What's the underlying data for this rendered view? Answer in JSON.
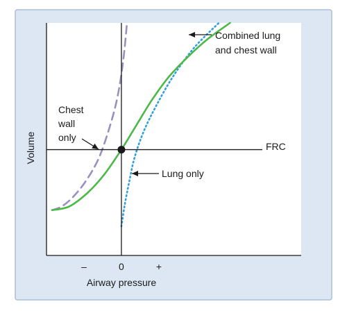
{
  "chart_data": {
    "type": "line",
    "title": "",
    "xlabel": "Airway pressure",
    "ylabel": "Volume",
    "x_ticks": [
      "–",
      "0",
      "+"
    ],
    "x_tick_values": [
      -1,
      0,
      1
    ],
    "xlim": [
      -2.0,
      4.8
    ],
    "ylim": [
      -4.55,
      5.45
    ],
    "reference_line": {
      "label": "FRC",
      "y": 0
    },
    "origin_marker": {
      "x": 0,
      "y": 0
    },
    "series": [
      {
        "name": "Chest wall only",
        "style": "dashed",
        "color": "#9b8fc0",
        "x": [
          -1.85,
          -1.6,
          -1.3,
          -0.95,
          -0.6,
          -0.3,
          -0.1,
          0.05,
          0.15
        ],
        "y": [
          -2.6,
          -2.45,
          -2.05,
          -1.35,
          -0.35,
          1.05,
          2.3,
          3.85,
          5.45
        ]
      },
      {
        "name": "Lung only",
        "style": "dotted",
        "color": "#2f9fe0",
        "x": [
          0.0,
          0.08,
          0.2,
          0.35,
          0.6,
          0.95,
          1.4,
          1.95,
          2.6
        ],
        "y": [
          -3.3,
          -2.45,
          -1.45,
          -0.35,
          0.8,
          1.95,
          3.2,
          4.4,
          5.45
        ]
      },
      {
        "name": "Combined lung and chest wall",
        "style": "solid",
        "color": "#4cb848",
        "x": [
          -1.85,
          -1.4,
          -0.9,
          -0.45,
          0.0,
          0.4,
          0.8,
          1.25,
          1.75,
          2.3,
          2.9
        ],
        "y": [
          -2.6,
          -2.45,
          -1.85,
          -1.05,
          0.0,
          1.05,
          2.1,
          3.1,
          3.95,
          4.75,
          5.45
        ]
      }
    ],
    "annotations": [
      {
        "lines": [
          "Combined lung",
          "and chest wall"
        ],
        "target": "Combined lung and chest wall"
      },
      {
        "lines": [
          "Lung only"
        ],
        "target": "Lung only"
      },
      {
        "lines": [
          "Chest",
          "wall",
          "only"
        ],
        "target": "Chest wall only"
      },
      {
        "lines": [
          "FRC"
        ],
        "target": "reference_line"
      }
    ]
  },
  "colors": {
    "panel_background": "#dce7f3",
    "panel_border": "#a9bfd8",
    "plot_background": "#ffffff",
    "axis": "#1a1a1a"
  }
}
